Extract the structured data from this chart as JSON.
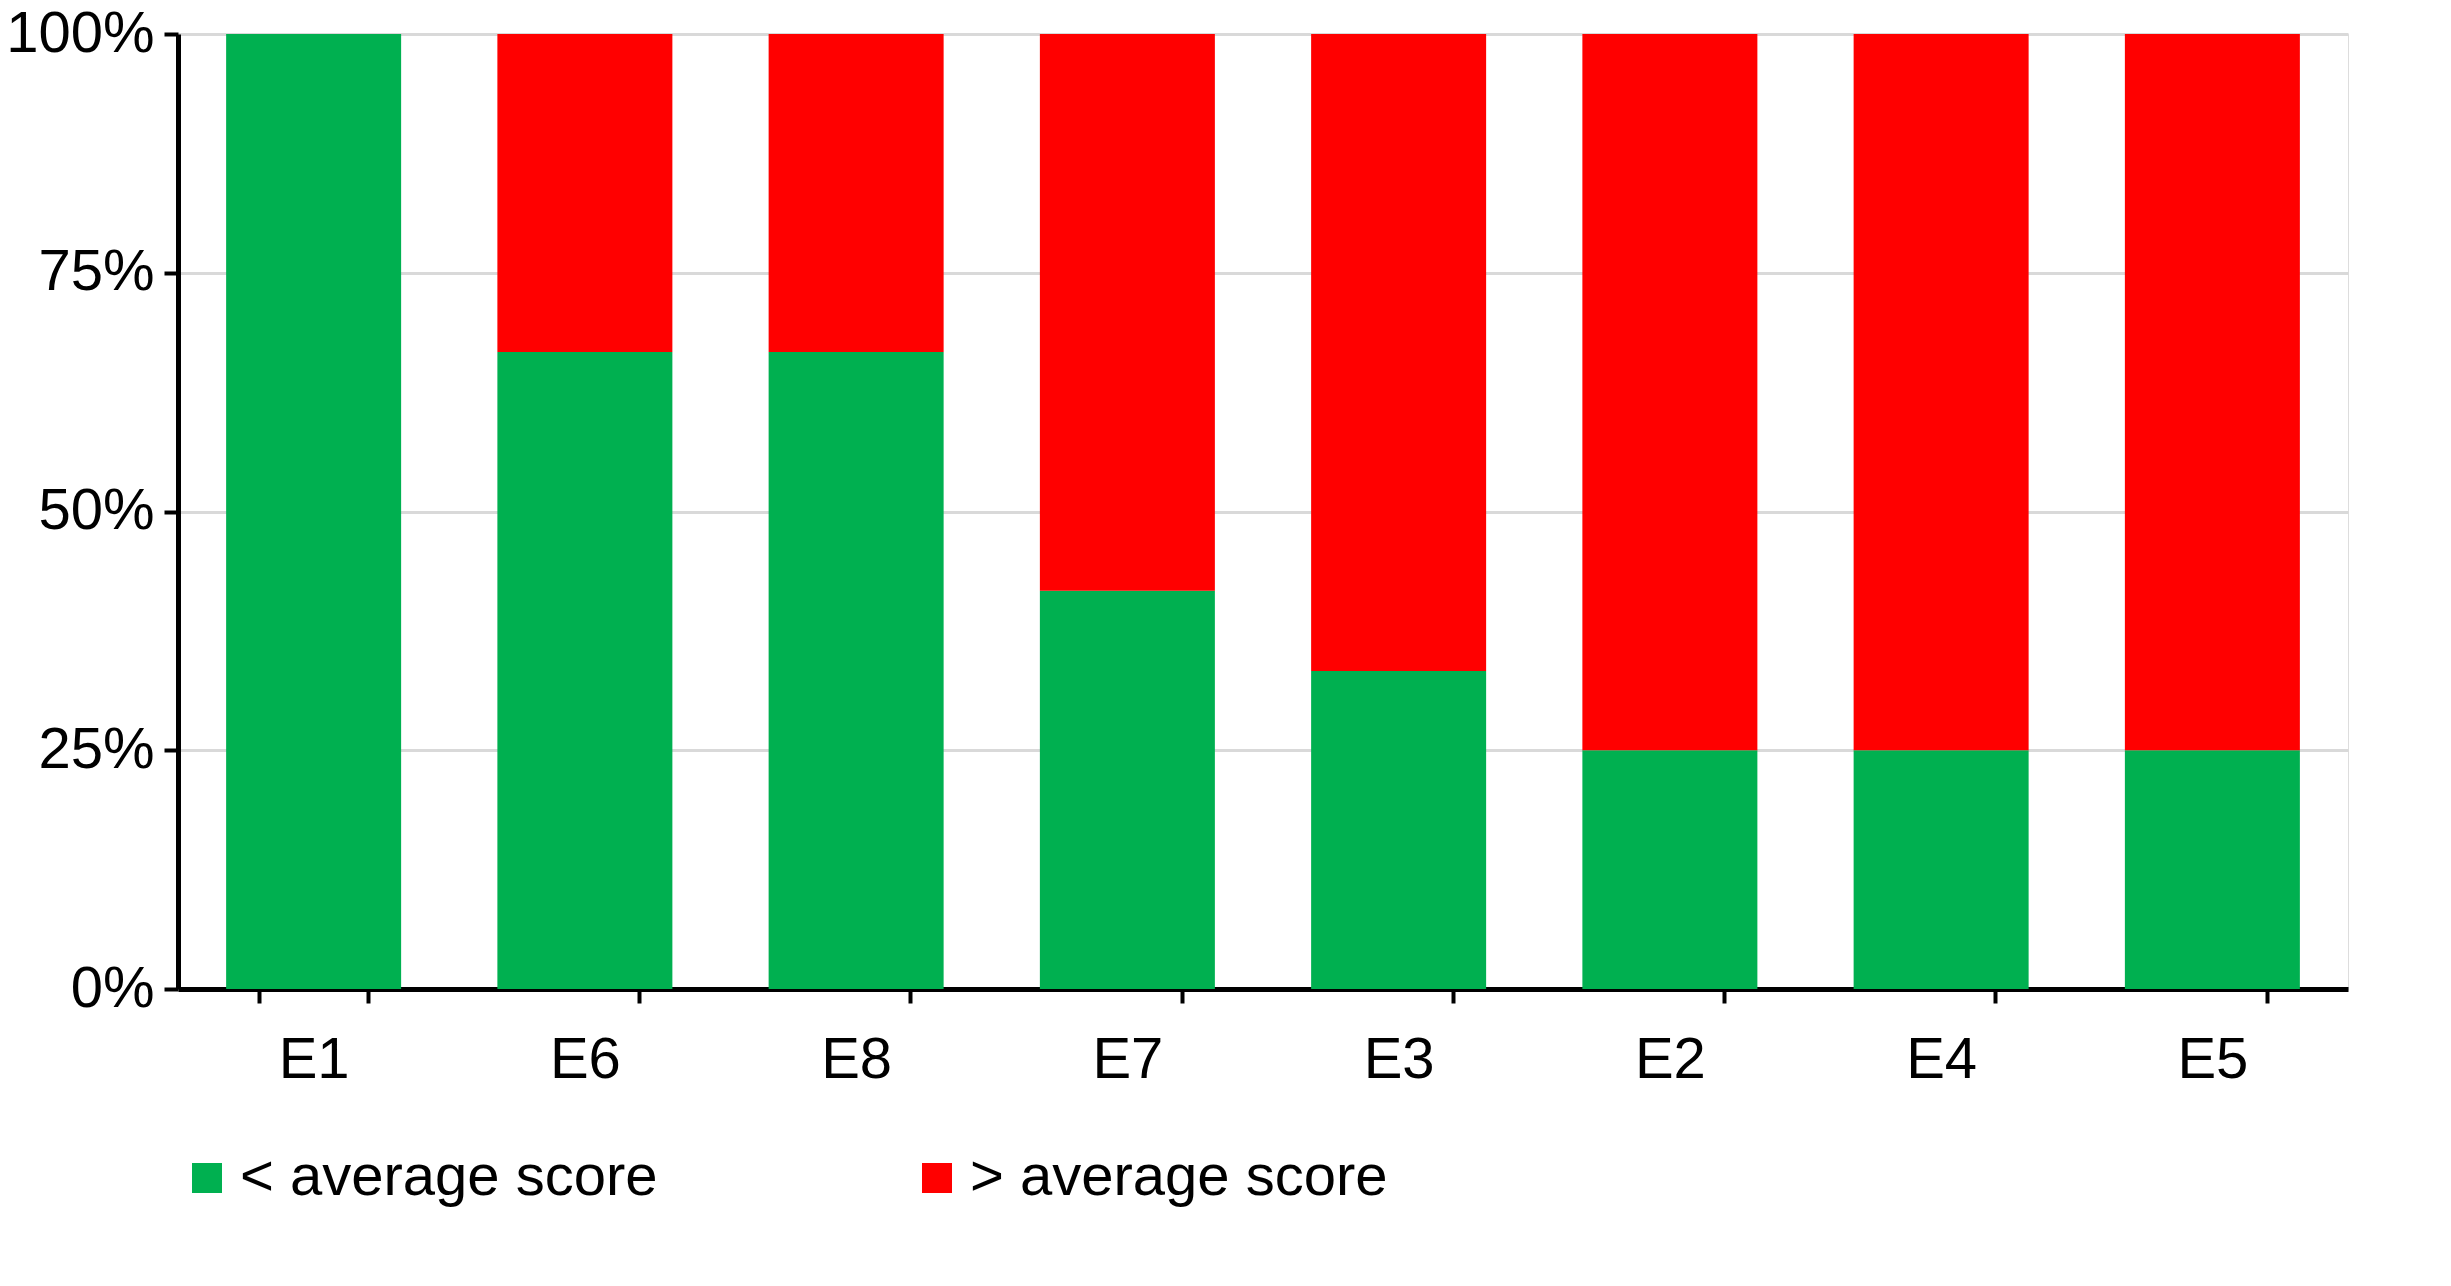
{
  "chart_data": {
    "type": "bar",
    "stacked": true,
    "categories": [
      "E1",
      "E6",
      "E8",
      "E7",
      "E3",
      "E2",
      "E4",
      "E5"
    ],
    "series": [
      {
        "name": "< average score",
        "color": "#00b050",
        "values": [
          100,
          66.7,
          66.7,
          41.7,
          33.3,
          25,
          25,
          25
        ]
      },
      {
        "name": "> average score",
        "color": "#ff0000",
        "values": [
          0,
          33.3,
          33.3,
          58.3,
          66.7,
          75,
          75,
          75
        ]
      }
    ],
    "ylim": [
      0,
      100
    ],
    "yticks": [
      {
        "value": 0,
        "label": "0%"
      },
      {
        "value": 25,
        "label": "25%"
      },
      {
        "value": 50,
        "label": "50%"
      },
      {
        "value": 75,
        "label": "75%"
      },
      {
        "value": 100,
        "label": "100%"
      }
    ],
    "grid": "y",
    "legend": "bottom"
  }
}
